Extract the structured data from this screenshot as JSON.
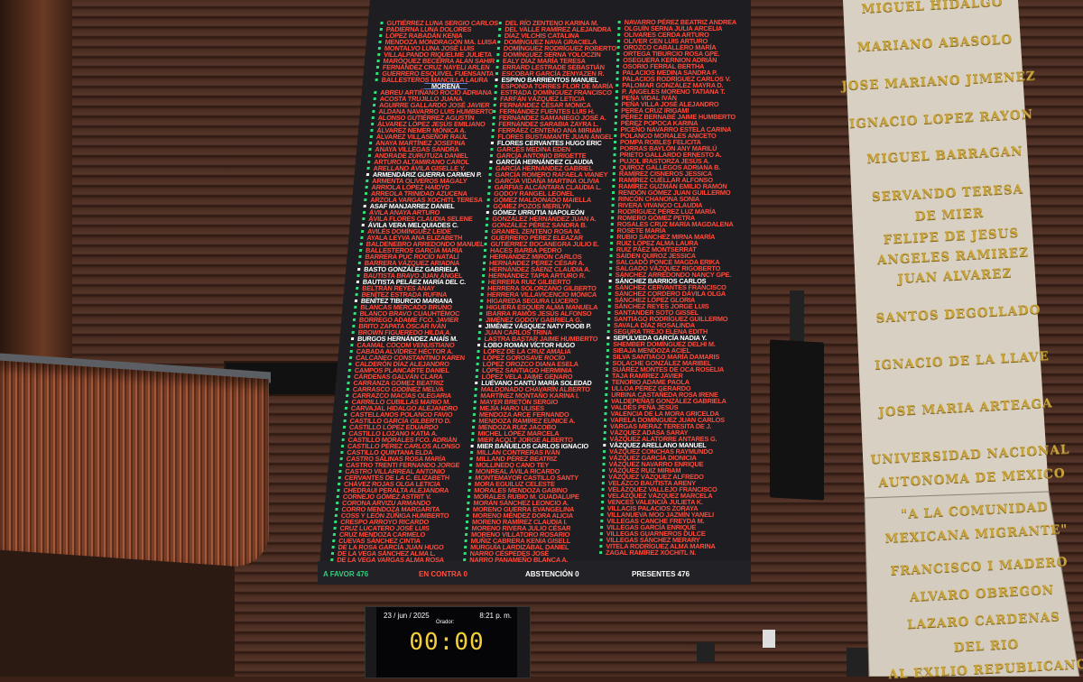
{
  "board": {
    "summary": {
      "favor": "A FAVOR 476",
      "contra": "EN CONTRA 0",
      "abstencion": "ABSTENCIÓN 0",
      "presentes": "PRESENTES 476"
    },
    "colors": {
      "favor": "#2fcf7a",
      "contra": "#ff4a3a",
      "highlight": "#ffffff",
      "background": "#1e1e22"
    },
    "col1": [
      {
        "n": "GUTIÉRREZ LUNA SERGIO CARLOS"
      },
      {
        "n": "PADIERNA LUNA DOLORES"
      },
      {
        "n": "LÓPEZ RABADÁN KENIA"
      },
      {
        "n": "MENDOZA MONDRAGÓN MA. LUISA"
      },
      {
        "n": "MONTALVO LUNA JOSÉ LUIS"
      },
      {
        "n": "VILLALPANDO RIQUELME JULIETA"
      },
      {
        "n": "MARÓQUEZ BECERRA ALAN SAHIR"
      },
      {
        "n": "FERNÁNDEZ CRUZ NAYELI ARLEN"
      },
      {
        "n": "GUERRERO ESQUIVEL FUENSANTA"
      },
      {
        "n": "BALLESTEROS MANCILLA LAURA"
      },
      {
        "n": "MORENA",
        "h": true
      },
      {
        "n": "ABREU ARTIÑANO ROCÍO ADRIANA"
      },
      {
        "n": "ACOSTA TRUJILLO JUANA"
      },
      {
        "n": "AGUIRRE GALLARDO JOSÉ JAVIER"
      },
      {
        "n": "ALDANA NAVARRO LUIS HUMBERTO"
      },
      {
        "n": "ALONSO GUTIÉRREZ AGUSTÍN"
      },
      {
        "n": "ÁLVAREZ LÓPEZ JESÚS EMILIANO"
      },
      {
        "n": "ÁLVAREZ NEMER MÓNICA A."
      },
      {
        "n": "ÁLVAREZ VILLASEÑOR RAÚL"
      },
      {
        "n": "ANAYA MARTÍNEZ JOSEFINA"
      },
      {
        "n": "ANAYA VILLEGAS SANDRA"
      },
      {
        "n": "ANDRADE ZURUTUZA DANIEL"
      },
      {
        "n": "ARTURO ALTAMIRANO CAROL"
      },
      {
        "n": "ARELLANO ÁVILA GISELLE Y."
      },
      {
        "n": "ARMENDÁRIZ GUERRA CARMEN P.",
        "w": true
      },
      {
        "n": "ARMENTA OLIVEROS MAGALY"
      },
      {
        "n": "ARRIOLA LÓPEZ HAIDYD"
      },
      {
        "n": "ARREOLA TRINIDAD AZUCENA"
      },
      {
        "n": "ARZOLA VARGAS XOCHITL TERESA"
      },
      {
        "n": "ASAF MANJARREZ DANIEL",
        "w": true
      },
      {
        "n": "ÁVILA ANAYA ARTURO"
      },
      {
        "n": "ÁVILA FLORES CLAUDIA SELENE"
      },
      {
        "n": "ÁVILA VERA MELQUIADES C.",
        "w": true
      },
      {
        "n": "AVILÉS DOMÍNGUEZ LEIDE"
      },
      {
        "n": "AYALA LEYVA ANA ELIZABETH"
      },
      {
        "n": "BALDENEBRO ARREDONDO MANUEL"
      },
      {
        "n": "BALLESTEROS GARCÍA MARÍA"
      },
      {
        "n": "BARRERA PUC ROCÍO NATALÍ"
      },
      {
        "n": "BARRERA VÁZQUEZ ARIADNA"
      },
      {
        "n": "BASTO GONZÁLEZ GABRIELA",
        "w": true
      },
      {
        "n": "BAUTISTA BRAVO JUAN ÁNGEL"
      },
      {
        "n": "BAUTISTA PELÁEZ MARÍA DEL C.",
        "w": true
      },
      {
        "n": "BELTRÁN REYES ANAY"
      },
      {
        "n": "BENÍTEZ ESTRADA RUFINA"
      },
      {
        "n": "BENÍTEZ TIBURCIO MARIANA",
        "w": true
      },
      {
        "n": "BLANCAS MERCADO BRUNO"
      },
      {
        "n": "BLANCO BRAVO CUAUHTÉMOC"
      },
      {
        "n": "BORREGO ADAME FCO. JAVIER"
      },
      {
        "n": "BRITO ZAPATA ÓSCAR IVÁN"
      },
      {
        "n": "BROWN FIGUEREDO HILDA A."
      },
      {
        "n": "BURGOS HERNÁNDEZ ANAÍS M.",
        "w": true
      },
      {
        "n": "CAAMAL COCOM VENUSTIANO"
      },
      {
        "n": "CABADA ALVÍDREZ HÉCTOR A."
      },
      {
        "n": "CALCANEO CONSTANTINO KAREN"
      },
      {
        "n": "CALDERÓN DÍAZ ALEJANDRO"
      },
      {
        "n": "CAMPOS PLANCARTE DANIEL"
      },
      {
        "n": "CÁRDENAS GALVÁN CLARA"
      },
      {
        "n": "CARRANZA GÓMEZ BEATRIZ"
      },
      {
        "n": "CARRASCO GODÍNEZ MELVA"
      },
      {
        "n": "CARRAZCO MACÍAS OLEGARIA"
      },
      {
        "n": "CARRILLO CUBILLAS MARIO M."
      },
      {
        "n": "CARVAJAL HIDALGO ALEJANDRO"
      },
      {
        "n": "CASTELLANOS POLANCO FAVIO"
      },
      {
        "n": "CASTILLO GARCÍA GILBERTO D."
      },
      {
        "n": "CASTILLO LÓPEZ EDUARDO"
      },
      {
        "n": "CASTILLO LOZANO KATIA A."
      },
      {
        "n": "CASTILLO MORALES FCO. ADRIÁN"
      },
      {
        "n": "CASTILLO PÉREZ CARLOS ALONSO"
      },
      {
        "n": "CASTILLO QUINTANA ELDA"
      },
      {
        "n": "CASTRO SALINAS ROSA MARÍA"
      },
      {
        "n": "CASTRO TRENTI FERNANDO JORGE"
      },
      {
        "n": "CASTRO VILLARREAL ANTONIO"
      },
      {
        "n": "CERVANTES DE LA C. ELIZABETH"
      },
      {
        "n": "CHÁVEZ ROJAS OLGA LETICIA"
      },
      {
        "n": "CHEDRAUI PERALTA ALEJANDRA"
      },
      {
        "n": "CORNEJO GÓMEZ ASTRIT V."
      },
      {
        "n": "CORONA ARVIZU ARMANDO"
      },
      {
        "n": "CORRO MENDOZA MARGARITA"
      },
      {
        "n": "COSS Y LEÓN ZÚÑIGA HUMBERTO"
      },
      {
        "n": "CRESPO ARROYO RICARDO"
      },
      {
        "n": "CRUZ LUCATERO JOSÉ LUIS"
      },
      {
        "n": "CRUZ MENDOZA CARMELO"
      },
      {
        "n": "CUEVAS SÁNCHEZ CINTIA"
      },
      {
        "n": "DE LA ROSA GARCÍA JUAN HUGO"
      },
      {
        "n": "DE LA VEGA SÁNCHEZ ALMA L."
      },
      {
        "n": "DE LA VEGA VARGAS ALMA ROSA"
      }
    ],
    "col2": [
      {
        "n": "DEL RÍO ZENTENO KARINA M."
      },
      {
        "n": "DEL VALLE RAMÍREZ ALEJANDRA"
      },
      {
        "n": "DÍAZ VILCHIS CATALINA"
      },
      {
        "n": "DOMÍNGUEZ NAVA GRACIELA"
      },
      {
        "n": "DOMÍNGUEZ RODRÍGUEZ ROBERTO"
      },
      {
        "n": "DOMÍNGUEZ SERNA YOLOCZIN"
      },
      {
        "n": "EALY DÍAZ MARÍA TERESA"
      },
      {
        "n": "ERRARD LESTRADE SEBASTIÁN"
      },
      {
        "n": "ESCOBAR GARCÍA ZENYAZEN R."
      },
      {
        "n": "ESPINO BARRIENTOS MANUEL",
        "w": true
      },
      {
        "n": "ESPONDA TORRES FLOR DE MARÍA"
      },
      {
        "n": "ESTRADA DOMÍNGUEZ FRANCISCO"
      },
      {
        "n": "FARFÁN VÁZQUEZ LETICIA"
      },
      {
        "n": "FERNÁNDEZ CÉSAR MÓNICA"
      },
      {
        "n": "FERNÁNDEZ FUENTES LUIS H."
      },
      {
        "n": "FERNÁNDEZ SAMANIEGO JOSÉ A."
      },
      {
        "n": "FERNÁNDEZ SARABIA ZAYRA L."
      },
      {
        "n": "FERRÁEZ CENTENO ANA MIRIAM"
      },
      {
        "n": "FLORES BUSTAMANTE JUAN ÁNGEL"
      },
      {
        "n": "FLORES CERVANTES HUGO ERIC",
        "w": true
      },
      {
        "n": "GARCÉS MEDINA EDEN"
      },
      {
        "n": "GARCÍA ANTONIO BRIGETTE"
      },
      {
        "n": "GARCÍA HERNÁNDEZ CLAUDIA",
        "w": true
      },
      {
        "n": "GARCÍA HERNÁNDEZ GABRIEL"
      },
      {
        "n": "GARCÍA ROMERO RAFAELA VIANEY"
      },
      {
        "n": "GARCÍA VIDAÑA MARTINA OLIVIA"
      },
      {
        "n": "GARFIAS ALCÁNTARA CLAUDIA L."
      },
      {
        "n": "GODOY RANGEL LEONEL"
      },
      {
        "n": "GÓMEZ MALDONADO MAIELLA"
      },
      {
        "n": "GÓMEZ POZOS MERILYN"
      },
      {
        "n": "GÓMEZ URRUTIA NAPOLEÓN",
        "w": true
      },
      {
        "n": "GONZÁLEZ HERNÁNDEZ JUAN A."
      },
      {
        "n": "GONZÁLEZ PÉREZ SANDRA B."
      },
      {
        "n": "GRANIEL ZENTENO ROSA M."
      },
      {
        "n": "GUERRERO PÉREZ ELEAZAR"
      },
      {
        "n": "GUTIÉRREZ BOCANEGRA JULIO E."
      },
      {
        "n": "HACES BARBA PEDRO"
      },
      {
        "n": "HERNÁNDEZ MIRÓN CARLOS"
      },
      {
        "n": "HERNÁNDEZ PÉREZ CÉSAR A."
      },
      {
        "n": "HERNÁNDEZ SÁENZ CLAUDIA A."
      },
      {
        "n": "HERNÁNDEZ TAPIA ARTURO R."
      },
      {
        "n": "HERRERA RUIZ GILBERTO"
      },
      {
        "n": "HERRERA SOLORZANO GILBERTO"
      },
      {
        "n": "HERRERA VILLAVICENCIO MÓNICA"
      },
      {
        "n": "HIGAREDA SEGURA LUCERO"
      },
      {
        "n": "HIGUERA ESQUER ALMA MANUELA"
      },
      {
        "n": "IBARRA RAMOS JESÚS ALFONSO"
      },
      {
        "n": "JIMÉNEZ GODOY GABRIELA G."
      },
      {
        "n": "JIMÉNEZ VÁSQUEZ NATY POOB P.",
        "w": true
      },
      {
        "n": "JUAN CARLOS TRINA"
      },
      {
        "n": "LASTRA BASTAR JAIME HUMBERTO"
      },
      {
        "n": "LOBO ROMÁN VÍCTOR HUGO",
        "w": true
      },
      {
        "n": "LÓPEZ DE LA CRUZ AMALIA"
      },
      {
        "n": "LÓPEZ GOROSAVE ROCÍO"
      },
      {
        "n": "LÓPEZ OROZCO DIANA ESELA"
      },
      {
        "n": "LÓPEZ SANTIAGO HERMINIA"
      },
      {
        "n": "LÓPEZ VELA JAIME GENARO"
      },
      {
        "n": "LUÉVANO CANTÚ MARÍA SOLEDAD",
        "w": true
      },
      {
        "n": "MALDONADO CHAVARÍN ALBERTO"
      },
      {
        "n": "MARTÍNEZ MONTAÑO KARINA I."
      },
      {
        "n": "MAYER BRETÓN SERGIO"
      },
      {
        "n": "MEJÍA HARO ULISES"
      },
      {
        "n": "MENDOZA ARCE FERNANDO"
      },
      {
        "n": "MENDOZA RAMÍREZ EUNICE A."
      },
      {
        "n": "MENDOZA RUIZ JACOBO"
      },
      {
        "n": "MICHEL LÓPEZ MARCELA"
      },
      {
        "n": "MIER ACOLT JORGE ALBERTO"
      },
      {
        "n": "MIER BAÑUELOS CARLOS IGNACIO",
        "w": true
      },
      {
        "n": "MILLÁN CONTRERAS IVÁN"
      },
      {
        "n": "MILLAND PÉREZ BEATRIZ"
      },
      {
        "n": "MOLLINEDO CANO TEY"
      },
      {
        "n": "MONREAL ÁVILA RICARDO"
      },
      {
        "n": "MONTEMAYOR CASTILLO SANTY"
      },
      {
        "n": "MORA EGUILUZ CELESTE"
      },
      {
        "n": "MORALES MENDOZA GABINO"
      },
      {
        "n": "MORALES RUBIO M. GUADALUPE"
      },
      {
        "n": "MORÁN SÁNCHEZ LEONCIO A."
      },
      {
        "n": "MORENO GUERRA EVANGELINA"
      },
      {
        "n": "MORENO MÉNDEZ DORA ALICIA"
      },
      {
        "n": "MORENO RAMÍREZ CLAUDIA I."
      },
      {
        "n": "MORENO RIVERA JULIO CÉSAR"
      },
      {
        "n": "MORENO VILLATORO ROSARIO"
      },
      {
        "n": "MUÑIZ CABRERA KENIA GISELL"
      },
      {
        "n": "MURGUÍA LARDIZÁBAL DANIEL"
      },
      {
        "n": "NARRO CÉSPEDES JOSÉ"
      },
      {
        "n": "NARRO PANAMEÑO BLANCA A."
      }
    ],
    "col3": [
      {
        "n": "NAVARRO PÉREZ BEATRIZ ANDREA"
      },
      {
        "n": "OLGUÍN SERNA JULIA ARCELIA"
      },
      {
        "n": "OLIVARES CERDA ARTURO"
      },
      {
        "n": "OLIVER CEN LUIS ARTURO"
      },
      {
        "n": "OROZCO CABALLERO MARÍA"
      },
      {
        "n": "ORTEGA TIBURCIO ROSA GPE."
      },
      {
        "n": "OSEGUERA KERNION ADRIÁN"
      },
      {
        "n": "OSORIO FERRAL BERTHA"
      },
      {
        "n": "PALACIOS MEDINA SANDRA P."
      },
      {
        "n": "PALACIOS RODRÍGUEZ CARLOS V."
      },
      {
        "n": "PALOMAR GONZÁLEZ MAYRA D."
      },
      {
        "n": "P. ÁNGELES MORENO TATIANA T."
      },
      {
        "n": "PEÑA VIDAL IVÁN"
      },
      {
        "n": "PEÑA VILLA JOSÉ ALEJANDRO"
      },
      {
        "n": "PEREA CRUZ IRIGAMI"
      },
      {
        "n": "PÉREZ BERNABÉ JAIME HUMBERTO"
      },
      {
        "n": "PÉREZ POPOCA KARINA"
      },
      {
        "n": "PICEÑO NAVARRO ESTELA CARINA"
      },
      {
        "n": "POLANCO MORALES ANICETO"
      },
      {
        "n": "POMPA ROBLES FELICITA"
      },
      {
        "n": "PORRAS BAYLÓN ANY MARILÚ"
      },
      {
        "n": "PRIETO GALLARDO ERNESTO A."
      },
      {
        "n": "PUJOL IRASTORZA JESÚS A."
      },
      {
        "n": "QUIROZ GALLEGOS ADRIANA B."
      },
      {
        "n": "RAMÍREZ CISNEROS JESSICA"
      },
      {
        "n": "RAMÍREZ CUÉLLAR ALFONSO"
      },
      {
        "n": "RAMÍREZ GUZMÁN EMILIO RAMÓN"
      },
      {
        "n": "RENDÓN GÓMEZ JUAN GUILLERMO"
      },
      {
        "n": "RINCÓN CHANONA SONIA"
      },
      {
        "n": "RIVERA VIVANCO CLAUDIA"
      },
      {
        "n": "RODRÍGUEZ PÉREZ LUZ MARÍA"
      },
      {
        "n": "ROMERO GÓMEZ PETRA"
      },
      {
        "n": "ROSALES CRUZ MARÍA MAGDALENA"
      },
      {
        "n": "ROSETE MARÍA"
      },
      {
        "n": "RUBIO SÁNCHEZ MIRNA MARÍA"
      },
      {
        "n": "RUIZ LÓPEZ ALMA LAURA"
      },
      {
        "n": "RUIZ PÁEZ MONTSERRAT"
      },
      {
        "n": "SAIDEN QUIROZ JESSICA"
      },
      {
        "n": "SALGADO PONCE MAGDA ERIKA"
      },
      {
        "n": "SALGADO VÁZQUEZ RIGOBERTO"
      },
      {
        "n": "SÁNCHEZ ARREDONDO NANCY GPE."
      },
      {
        "n": "SÁNCHEZ BARRIOS CARLOS",
        "w": true
      },
      {
        "n": "SÁNCHEZ CERVANTES FRANCISCO"
      },
      {
        "n": "SÁNCHEZ CORDERO DÁVILA OLGA"
      },
      {
        "n": "SÁNCHEZ LÓPEZ GLORIA"
      },
      {
        "n": "SÁNCHEZ REYES JORGE LUIS"
      },
      {
        "n": "SANTANDER SOTO GISSEL"
      },
      {
        "n": "SANTIAGO RODRÍGUEZ GUILLERMO"
      },
      {
        "n": "SAVALA DÍAZ ROSALINDA"
      },
      {
        "n": "SEGURA TREJO ELENA EDITH"
      },
      {
        "n": "SEPÚLVEDA GARCÍA NADIA Y.",
        "w": true
      },
      {
        "n": "SHEMBER DOMÍNGUEZ DELHI M."
      },
      {
        "n": "SIBAJA MENDOZA ACIEL"
      },
      {
        "n": "SILVA SANTIAGO MARÍA DAMARIS"
      },
      {
        "n": "SOLACHE GONZÁLEZ MARIBEL"
      },
      {
        "n": "SUÁREZ MONTES DE OCA ROSELIA"
      },
      {
        "n": "TAJA RAMÍREZ JAVIER"
      },
      {
        "n": "TENORIO ADAME PAOLA"
      },
      {
        "n": "ULLOA PÉREZ GERARDO"
      },
      {
        "n": "URBINA CASTAÑEDA ROSA IRENE"
      },
      {
        "n": "VALDEPEÑAS GONZÁLEZ GABRIELA"
      },
      {
        "n": "VALDÉS PEÑA JESÚS"
      },
      {
        "n": "VALENCIA DE LA MORA GRICELDA"
      },
      {
        "n": "VARELA DOMÍNGUEZ JUAN CARLOS"
      },
      {
        "n": "VARGAS MERAZ TERESITA DE J."
      },
      {
        "n": "VÁZQUEZ ADASA SARAY"
      },
      {
        "n": "VÁZQUEZ ALATORRE ANTARES G."
      },
      {
        "n": "VÁZQUEZ ARELLANO MANUEL",
        "w": true
      },
      {
        "n": "VÁZQUEZ CONCHAS RAYMUNDO"
      },
      {
        "n": "VÁZQUEZ GARCÍA DIONICIA"
      },
      {
        "n": "VÁZQUEZ NAVARRO ENRIQUE"
      },
      {
        "n": "VÁZQUEZ RUIZ MIRIAM"
      },
      {
        "n": "VÁZQUEZ VÁZQUEZ ALFREDO"
      },
      {
        "n": "VELAZCO BAUTISTA ARENY"
      },
      {
        "n": "VELÁZQUEZ VALLEJO FRANCISCO"
      },
      {
        "n": "VELÁZQUEZ VÁZQUEZ MARCELA"
      },
      {
        "n": "VENCES VALENCIA JULIETA K."
      },
      {
        "n": "VILLACIS PALACIOS ZORAYA"
      },
      {
        "n": "VILLANUEVA MOO JAZMÍN YANELI"
      },
      {
        "n": "VILLEGAS CANCHE FREYDA M."
      },
      {
        "n": "VILLEGAS GARCÍA ENRIQUE"
      },
      {
        "n": "VILLEGAS GUARNEROS DULCE"
      },
      {
        "n": "VILLEGAS SÁNCHEZ MERARY"
      },
      {
        "n": "VITELA RODRÍGUEZ ALMA MARINA"
      },
      {
        "n": "ZAGAL RAMÍREZ XÓCHITL N."
      }
    ]
  },
  "clock": {
    "date": "23 / jun / 2025",
    "time": "8:21 p. m.",
    "speaker_label": "Orador:",
    "timer": "00:00",
    "timer_color": "#f4cf3a"
  },
  "plaque": {
    "lines": [
      "MIGUEL HIDALGO",
      "MARIANO ABASOLO",
      "JOSE MARIANO JIMENEZ",
      "IGNACIO LOPEZ RAYON",
      "MIGUEL BARRAGAN",
      "SERVANDO TERESA",
      "DE MIER",
      "FELIPE DE JESUS",
      "ANGELES RAMIREZ",
      "JUAN ALVAREZ",
      "SANTOS DEGOLLADO",
      "IGNACIO DE LA LLAVE",
      "JOSE MARIA ARTEAGA",
      "UNIVERSIDAD NACIONAL",
      "AUTONOMA DE MEXICO",
      "\"A LA COMUNIDAD",
      "MEXICANA MIGRANTE\"",
      "FRANCISCO I MADERO",
      "ALVARO OBREGON",
      "LAZARO CARDENAS",
      "DEL RIO",
      "AL EXILIO REPUBLICANO"
    ],
    "letter_color": "#c9a43a"
  }
}
